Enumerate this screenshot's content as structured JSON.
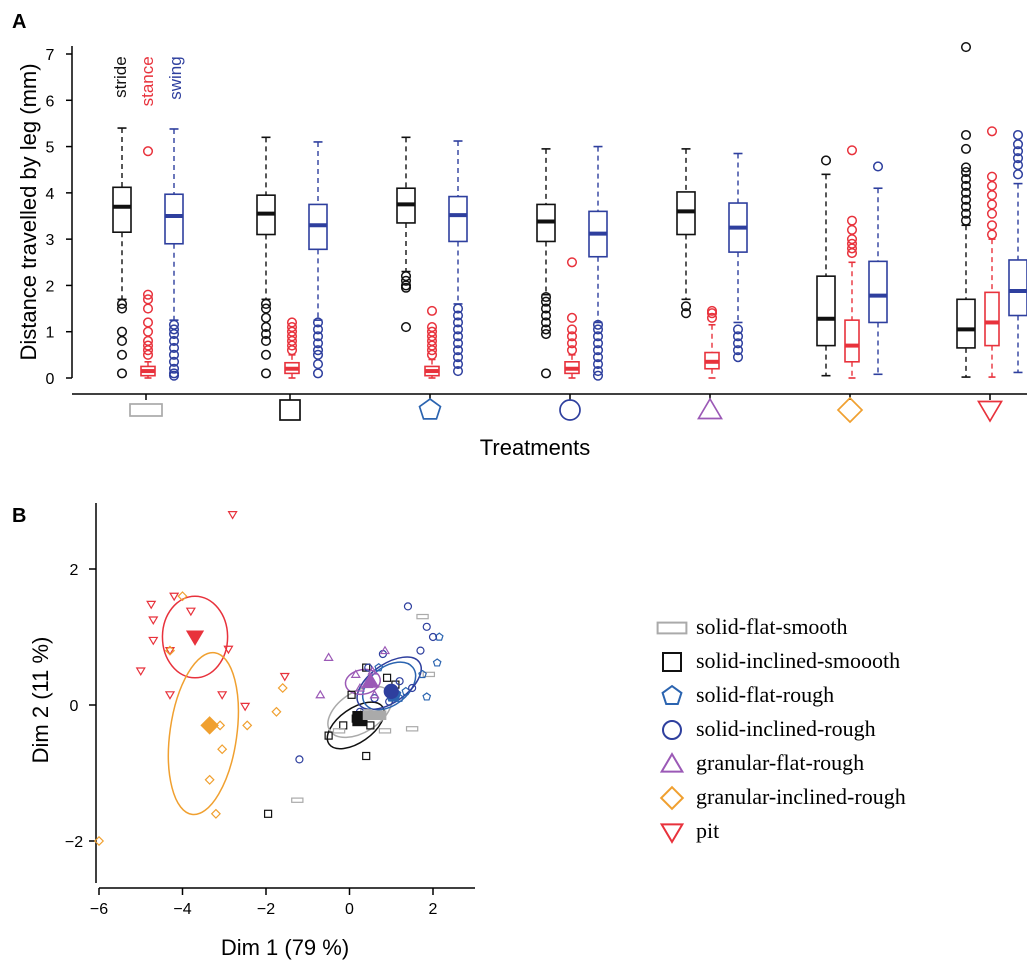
{
  "chart_data": [
    {
      "panel": "A",
      "type": "box",
      "ylabel": "Distance travelled by leg (mm)",
      "xlabel": "Treatments",
      "ylim": [
        0,
        7
      ],
      "yticks": [
        "0",
        "1",
        "2",
        "3",
        "4",
        "5",
        "6",
        "7"
      ],
      "legend": [
        {
          "name": "stride",
          "color": "#111111"
        },
        {
          "name": "stance",
          "color": "#e8323c"
        },
        {
          "name": "swing",
          "color": "#2e3f9e"
        }
      ],
      "categories": [
        {
          "symbol": "rect",
          "color": "#aaaaaa",
          "boxes": [
            {
              "series": "stride",
              "q1": 3.15,
              "median": 3.7,
              "q3": 4.12,
              "lo": 1.7,
              "hi": 5.4,
              "outliers": [
                0.1,
                0.5,
                0.8,
                1.0,
                1.5,
                1.6
              ]
            },
            {
              "series": "stance",
              "q1": 0.05,
              "median": 0.15,
              "q3": 0.25,
              "lo": 0.0,
              "hi": 0.35,
              "outliers": [
                0.5,
                0.6,
                0.7,
                0.8,
                1.0,
                1.2,
                1.5,
                1.7,
                1.8,
                4.9
              ]
            },
            {
              "series": "swing",
              "q1": 2.9,
              "median": 3.5,
              "q3": 3.97,
              "lo": 1.25,
              "hi": 5.38,
              "outliers": [
                0.05,
                0.1,
                0.2,
                0.35,
                0.5,
                0.65,
                0.8,
                0.95,
                1.05,
                1.15
              ]
            }
          ]
        },
        {
          "symbol": "square",
          "color": "#111111",
          "boxes": [
            {
              "series": "stride",
              "q1": 3.1,
              "median": 3.55,
              "q3": 3.95,
              "lo": 1.7,
              "hi": 5.2,
              "outliers": [
                0.1,
                0.5,
                0.8,
                0.95,
                1.1,
                1.3,
                1.5,
                1.6
              ]
            },
            {
              "series": "stance",
              "q1": 0.1,
              "median": 0.2,
              "q3": 0.33,
              "lo": 0.0,
              "hi": 0.5,
              "outliers": [
                0.6,
                0.7,
                0.8,
                0.9,
                1.0,
                1.1,
                1.2
              ]
            },
            {
              "series": "swing",
              "q1": 2.78,
              "median": 3.3,
              "q3": 3.75,
              "lo": 1.25,
              "hi": 5.1,
              "outliers": [
                0.1,
                0.3,
                0.5,
                0.6,
                0.75,
                0.9,
                1.05,
                1.2
              ]
            }
          ]
        },
        {
          "symbol": "pentagon",
          "color": "#2b64b0",
          "boxes": [
            {
              "series": "stride",
              "q1": 3.35,
              "median": 3.75,
              "q3": 4.1,
              "lo": 2.3,
              "hi": 5.2,
              "outliers": [
                1.1,
                1.95,
                2.0,
                2.1,
                2.2
              ]
            },
            {
              "series": "stance",
              "q1": 0.05,
              "median": 0.15,
              "q3": 0.25,
              "lo": 0.0,
              "hi": 0.4,
              "outliers": [
                0.5,
                0.6,
                0.7,
                0.8,
                0.9,
                1.0,
                1.1,
                1.45
              ]
            },
            {
              "series": "swing",
              "q1": 2.95,
              "median": 3.52,
              "q3": 3.92,
              "lo": 1.6,
              "hi": 5.12,
              "outliers": [
                0.15,
                0.3,
                0.45,
                0.6,
                0.75,
                0.9,
                1.05,
                1.2,
                1.35,
                1.5
              ]
            }
          ]
        },
        {
          "symbol": "circle",
          "color": "#2e3f9e",
          "boxes": [
            {
              "series": "stride",
              "q1": 2.95,
              "median": 3.38,
              "q3": 3.75,
              "lo": 1.8,
              "hi": 4.95,
              "outliers": [
                0.1,
                0.95,
                1.05,
                1.2,
                1.35,
                1.5,
                1.65,
                1.75
              ]
            },
            {
              "series": "stance",
              "q1": 0.1,
              "median": 0.2,
              "q3": 0.35,
              "lo": 0.0,
              "hi": 0.5,
              "outliers": [
                0.6,
                0.75,
                0.9,
                1.05,
                1.3,
                2.5
              ]
            },
            {
              "series": "swing",
              "q1": 2.62,
              "median": 3.12,
              "q3": 3.6,
              "lo": 1.2,
              "hi": 5.0,
              "outliers": [
                0.05,
                0.15,
                0.3,
                0.45,
                0.6,
                0.75,
                0.9,
                1.05,
                1.15
              ]
            }
          ]
        },
        {
          "symbol": "triangle-up",
          "color": "#9b59b6",
          "boxes": [
            {
              "series": "stride",
              "q1": 3.1,
              "median": 3.6,
              "q3": 4.02,
              "lo": 1.7,
              "hi": 4.95,
              "outliers": [
                1.4,
                1.55
              ]
            },
            {
              "series": "stance",
              "q1": 0.2,
              "median": 0.35,
              "q3": 0.55,
              "lo": 0.0,
              "hi": 1.15,
              "outliers": [
                1.3,
                1.4,
                1.45
              ]
            },
            {
              "series": "swing",
              "q1": 2.72,
              "median": 3.25,
              "q3": 3.78,
              "lo": 1.2,
              "hi": 4.85,
              "outliers": [
                0.45,
                0.6,
                0.75,
                0.9,
                1.05
              ]
            }
          ]
        },
        {
          "symbol": "diamond",
          "color": "#f0a030",
          "boxes": [
            {
              "series": "stride",
              "q1": 0.7,
              "median": 1.28,
              "q3": 2.2,
              "lo": 0.05,
              "hi": 4.4,
              "outliers": [
                4.7
              ]
            },
            {
              "series": "stance",
              "q1": 0.35,
              "median": 0.7,
              "q3": 1.25,
              "lo": 0.0,
              "hi": 2.5,
              "outliers": [
                2.7,
                2.8,
                2.9,
                3.0,
                3.2,
                3.4,
                4.92
              ]
            },
            {
              "series": "swing",
              "q1": 1.2,
              "median": 1.78,
              "q3": 2.52,
              "lo": 0.08,
              "hi": 4.1,
              "outliers": [
                4.57
              ]
            }
          ]
        },
        {
          "symbol": "triangle-down",
          "color": "#e8323c",
          "boxes": [
            {
              "series": "stride",
              "q1": 0.65,
              "median": 1.05,
              "q3": 1.7,
              "lo": 0.02,
              "hi": 3.3,
              "outliers": [
                3.4,
                3.55,
                3.7,
                3.85,
                4.0,
                4.15,
                4.3,
                4.45,
                4.55,
                4.95,
                5.25,
                7.15
              ]
            },
            {
              "series": "stance",
              "q1": 0.7,
              "median": 1.2,
              "q3": 1.85,
              "lo": 0.02,
              "hi": 3.0,
              "outliers": [
                3.1,
                3.3,
                3.55,
                3.75,
                3.95,
                4.15,
                4.35,
                5.33
              ]
            },
            {
              "series": "swing",
              "q1": 1.35,
              "median": 1.88,
              "q3": 2.55,
              "lo": 0.12,
              "hi": 4.2,
              "outliers": [
                4.4,
                4.6,
                4.75,
                4.9,
                5.05,
                5.25
              ]
            }
          ]
        }
      ]
    },
    {
      "panel": "B",
      "type": "scatter",
      "xlabel": "Dim 1 (79 %)",
      "ylabel": "Dim 2 (11 %)",
      "xticks": [
        "−6",
        "−4",
        "−2",
        "0",
        "2"
      ],
      "yticks": [
        "−2",
        "0",
        "2"
      ],
      "xlim": [
        -6.1,
        3.0
      ],
      "ylim": [
        -2.7,
        3.0
      ],
      "legend": [
        {
          "name": "solid-flat-smooth",
          "symbol": "rect",
          "color": "#aaaaaa"
        },
        {
          "name": "solid-inclined-smoooth",
          "symbol": "square",
          "color": "#111111"
        },
        {
          "name": "solid-flat-rough",
          "symbol": "pentagon",
          "color": "#2b64b0"
        },
        {
          "name": "solid-inclined-rough",
          "symbol": "circle",
          "color": "#2e3f9e"
        },
        {
          "name": "granular-flat-rough",
          "symbol": "triangle-up",
          "color": "#9b59b6"
        },
        {
          "name": "granular-inclined-rough",
          "symbol": "diamond",
          "color": "#f0a030"
        },
        {
          "name": "pit",
          "symbol": "triangle-down",
          "color": "#e8323c"
        }
      ],
      "groups": [
        {
          "name": "pit",
          "points": [
            [
              -2.8,
              2.8
            ],
            [
              -4.2,
              1.6
            ],
            [
              -4.75,
              1.48
            ],
            [
              -3.8,
              1.38
            ],
            [
              -4.7,
              1.25
            ],
            [
              -4.7,
              0.95
            ],
            [
              -4.3,
              0.8
            ],
            [
              -2.9,
              0.82
            ],
            [
              -5.0,
              0.5
            ],
            [
              -1.55,
              0.42
            ],
            [
              -4.3,
              0.15
            ],
            [
              -3.05,
              0.15
            ],
            [
              -2.5,
              -0.02
            ]
          ],
          "centroid": [
            -3.7,
            1.0
          ],
          "ellipse": {
            "cx": -3.7,
            "cy": 1.0,
            "rx": 0.78,
            "ry": 0.6,
            "angle": 0
          }
        },
        {
          "name": "granular-inclined-rough",
          "points": [
            [
              -4.0,
              1.6
            ],
            [
              -4.3,
              0.8
            ],
            [
              -1.6,
              0.25
            ],
            [
              -1.75,
              -0.1
            ],
            [
              -2.45,
              -0.3
            ],
            [
              -3.1,
              -0.3
            ],
            [
              -3.05,
              -0.65
            ],
            [
              -3.35,
              -1.1
            ],
            [
              -3.2,
              -1.6
            ],
            [
              -6.0,
              -2.0
            ]
          ],
          "centroid": [
            -3.35,
            -0.3
          ],
          "ellipse": {
            "cx": -3.5,
            "cy": -0.42,
            "rx": 0.8,
            "ry": 1.2,
            "angle": 8
          }
        },
        {
          "name": "solid-inclined-smoooth",
          "points": [
            [
              0.05,
              0.15
            ],
            [
              0.4,
              0.55
            ],
            [
              0.15,
              -0.2
            ],
            [
              0.5,
              -0.3
            ],
            [
              -0.15,
              -0.3
            ],
            [
              -0.5,
              -0.45
            ],
            [
              0.4,
              -0.75
            ],
            [
              -1.95,
              -1.6
            ],
            [
              0.9,
              0.4
            ],
            [
              1.1,
              0.3
            ]
          ],
          "centroid": [
            0.25,
            -0.2
          ],
          "ellipse": {
            "cx": 0.15,
            "cy": -0.3,
            "rx": 0.78,
            "ry": 0.25,
            "angle": -35
          }
        },
        {
          "name": "solid-flat-smooth",
          "points": [
            [
              1.75,
              1.3
            ],
            [
              1.9,
              0.45
            ],
            [
              1.5,
              -0.35
            ],
            [
              0.85,
              -0.38
            ],
            [
              -0.25,
              -0.38
            ],
            [
              -1.25,
              -1.4
            ],
            [
              0.4,
              -0.1
            ]
          ],
          "centroid": [
            0.6,
            -0.15
          ],
          "ellipse": {
            "cx": 0.25,
            "cy": -0.1,
            "rx": 0.85,
            "ry": 0.3,
            "angle": -32
          }
        },
        {
          "name": "solid-flat-rough",
          "points": [
            [
              2.15,
              1.0
            ],
            [
              2.1,
              0.62
            ],
            [
              1.85,
              0.12
            ],
            [
              1.75,
              0.45
            ],
            [
              1.35,
              0.2
            ],
            [
              0.7,
              0.55
            ],
            [
              1.2,
              0.1
            ]
          ],
          "centroid": [
            1.05,
            0.15
          ],
          "ellipse": {
            "cx": 0.95,
            "cy": 0.28,
            "rx": 0.72,
            "ry": 0.28,
            "angle": -38
          }
        },
        {
          "name": "solid-inclined-rough",
          "points": [
            [
              1.4,
              1.45
            ],
            [
              1.85,
              1.15
            ],
            [
              2.0,
              1.0
            ],
            [
              1.7,
              0.8
            ],
            [
              0.8,
              0.75
            ],
            [
              1.2,
              0.35
            ],
            [
              0.45,
              0.55
            ],
            [
              -1.2,
              -0.8
            ],
            [
              0.6,
              0.1
            ],
            [
              0.95,
              0.05
            ],
            [
              1.5,
              0.25
            ],
            [
              0.25,
              -0.1
            ]
          ],
          "centroid": [
            1.0,
            0.2
          ],
          "ellipse": {
            "cx": 0.95,
            "cy": 0.32,
            "rx": 0.88,
            "ry": 0.28,
            "angle": -35
          }
        },
        {
          "name": "granular-flat-rough",
          "points": [
            [
              -0.5,
              0.7
            ],
            [
              0.55,
              0.5
            ],
            [
              0.85,
              0.8
            ],
            [
              0.6,
              0.15
            ],
            [
              0.25,
              0.25
            ],
            [
              -0.7,
              0.15
            ],
            [
              0.45,
              0.3
            ],
            [
              0.15,
              0.45
            ]
          ],
          "centroid": [
            0.5,
            0.35
          ],
          "ellipse": {
            "cx": 0.32,
            "cy": 0.34,
            "rx": 0.42,
            "ry": 0.18,
            "angle": -10
          }
        }
      ]
    }
  ]
}
